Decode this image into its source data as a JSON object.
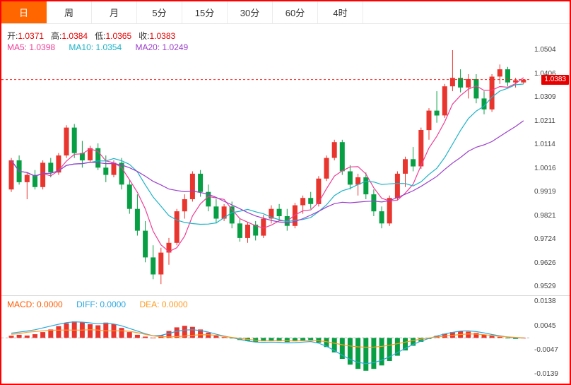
{
  "tabs": [
    {
      "label": "日",
      "active": true
    },
    {
      "label": "周",
      "active": false
    },
    {
      "label": "月",
      "active": false
    },
    {
      "label": "5分",
      "active": false
    },
    {
      "label": "15分",
      "active": false
    },
    {
      "label": "30分",
      "active": false
    },
    {
      "label": "60分",
      "active": false
    },
    {
      "label": "4时",
      "active": false
    }
  ],
  "ohlc": {
    "open_label": "开:",
    "open": "1.0371",
    "high_label": "高:",
    "high": "1.0384",
    "low_label": "低:",
    "low": "1.0365",
    "close_label": "收:",
    "close": "1.0383"
  },
  "ma": {
    "ma5_label": "MA5:",
    "ma5_value": "1.0398",
    "ma10_label": "MA10:",
    "ma10_value": "1.0354",
    "ma20_label": "MA20:",
    "ma20_value": "1.0249"
  },
  "current_price": "1.0383",
  "price_axis_labels": [
    "1.0504",
    "1.0406",
    "1.0309",
    "1.0211",
    "1.0114",
    "1.0016",
    "0.9919",
    "0.9821",
    "0.9724",
    "0.9626",
    "0.9529"
  ],
  "macd_panel": {
    "macd_label": "MACD:",
    "macd_value": "0.0000",
    "diff_label": "DIFF:",
    "diff_value": "0.0000",
    "dea_label": "DEA:",
    "dea_value": "0.0000",
    "axis_labels": [
      "0.0138",
      "0.0045",
      "-0.0047",
      "-0.0139"
    ]
  },
  "colors": {
    "up": "#e8352e",
    "down": "#089f44",
    "ma5": "#ee3d96",
    "ma10": "#1cb3c8",
    "ma20": "#9b3ecb",
    "macd_label": "#ff5a00",
    "diff": "#2ba8e0",
    "dea": "#ff9a1e",
    "accent": "#ff6600",
    "price_line": "#ff2222",
    "value_red": "#e60000",
    "axis_text": "#444444"
  },
  "chart_data": [
    {
      "type": "candlestick",
      "title": "日K线 (Daily candlestick, main panel)",
      "price_range": [
        0.9529,
        1.0504
      ],
      "axis_ticks": [
        1.0504,
        1.0406,
        1.0309,
        1.0211,
        1.0114,
        1.0016,
        0.9919,
        0.9821,
        0.9724,
        0.9626,
        0.9529
      ],
      "current_price": 1.0383,
      "overlays": [
        {
          "name": "MA5",
          "period": 5,
          "color_key": "ma5"
        },
        {
          "name": "MA10",
          "period": 10,
          "color_key": "ma10"
        },
        {
          "name": "MA20",
          "period": 20,
          "color_key": "ma20"
        }
      ],
      "candles": [
        [
          0.993,
          1.006,
          0.992,
          1.005
        ],
        [
          1.005,
          1.007,
          0.995,
          0.996
        ],
        [
          0.996,
          1.0,
          0.989,
          0.999
        ],
        [
          0.999,
          1.001,
          0.993,
          0.994
        ],
        [
          0.994,
          1.005,
          0.993,
          1.004
        ],
        [
          1.004,
          1.006,
          0.998,
          1.0
        ],
        [
          1.0,
          1.008,
          0.999,
          1.007
        ],
        [
          1.007,
          1.0195,
          1.006,
          1.0185
        ],
        [
          1.0185,
          1.02,
          1.006,
          1.008
        ],
        [
          1.008,
          1.013,
          1.002,
          1.005
        ],
        [
          1.005,
          1.011,
          1.004,
          1.01
        ],
        [
          1.01,
          1.012,
          1.001,
          1.002
        ],
        [
          1.002,
          1.007,
          0.996,
          0.999
        ],
        [
          0.999,
          1.005,
          0.998,
          1.004
        ],
        [
          1.004,
          1.006,
          0.993,
          0.995
        ],
        [
          0.995,
          0.997,
          0.983,
          0.985
        ],
        [
          0.985,
          0.991,
          0.974,
          0.976
        ],
        [
          0.976,
          0.98,
          0.963,
          0.965
        ],
        [
          0.965,
          0.97,
          0.956,
          0.958
        ],
        [
          0.958,
          0.969,
          0.954,
          0.967
        ],
        [
          0.967,
          0.973,
          0.962,
          0.971
        ],
        [
          0.971,
          0.985,
          0.97,
          0.984
        ],
        [
          0.984,
          0.991,
          0.981,
          0.989
        ],
        [
          0.989,
          1.0005,
          0.988,
          0.9995
        ],
        [
          0.9995,
          1.001,
          0.99,
          0.992
        ],
        [
          0.992,
          0.995,
          0.984,
          0.986
        ],
        [
          0.986,
          0.989,
          0.979,
          0.981
        ],
        [
          0.981,
          0.987,
          0.98,
          0.986
        ],
        [
          0.986,
          0.988,
          0.977,
          0.979
        ],
        [
          0.979,
          0.981,
          0.9715,
          0.973
        ],
        [
          0.973,
          0.9795,
          0.971,
          0.9785
        ],
        [
          0.9785,
          0.98,
          0.972,
          0.974
        ],
        [
          0.974,
          0.9825,
          0.973,
          0.981
        ],
        [
          0.981,
          0.9865,
          0.979,
          0.985
        ],
        [
          0.985,
          0.987,
          0.98,
          0.982
        ],
        [
          0.982,
          0.985,
          0.976,
          0.978
        ],
        [
          0.978,
          0.9875,
          0.977,
          0.9865
        ],
        [
          0.9865,
          0.9905,
          0.983,
          0.9895
        ],
        [
          0.9895,
          0.992,
          0.985,
          0.987
        ],
        [
          0.987,
          0.9985,
          0.986,
          0.9975
        ],
        [
          0.9975,
          1.007,
          0.9965,
          1.006
        ],
        [
          1.006,
          1.0135,
          1.005,
          1.0125
        ],
        [
          1.0125,
          1.0135,
          0.999,
          1.0005
        ],
        [
          1.0005,
          1.003,
          0.993,
          0.995
        ],
        [
          0.995,
          0.9995,
          0.9905,
          0.998
        ],
        [
          0.998,
          1.0,
          0.989,
          0.991
        ],
        [
          0.991,
          0.993,
          0.982,
          0.984
        ],
        [
          0.984,
          0.986,
          0.977,
          0.979
        ],
        [
          0.979,
          0.9905,
          0.978,
          0.9895
        ],
        [
          0.9895,
          1.0005,
          0.9885,
          0.9995
        ],
        [
          0.9995,
          1.0065,
          0.994,
          1.0055
        ],
        [
          1.0055,
          1.0105,
          1.0005,
          1.0025
        ],
        [
          1.0025,
          1.0185,
          1.0015,
          1.0175
        ],
        [
          1.0175,
          1.0265,
          1.0135,
          1.0255
        ],
        [
          1.0255,
          1.0335,
          1.0205,
          1.0235
        ],
        [
          1.0235,
          1.0365,
          1.0225,
          1.0355
        ],
        [
          1.0355,
          1.0504,
          1.0335,
          1.039
        ],
        [
          1.039,
          1.0425,
          1.033,
          1.035
        ],
        [
          1.035,
          1.0405,
          1.0305,
          1.0385
        ],
        [
          1.0385,
          1.0405,
          1.0285,
          1.0305
        ],
        [
          1.0305,
          1.0335,
          1.024,
          1.026
        ],
        [
          1.026,
          1.0405,
          1.025,
          1.0395
        ],
        [
          1.0395,
          1.0445,
          1.0365,
          1.0425
        ],
        [
          1.0425,
          1.0435,
          1.0355,
          1.0371
        ],
        [
          1.0371,
          1.039,
          1.035,
          1.038
        ],
        [
          1.0371,
          1.0384,
          1.0365,
          1.0383
        ]
      ]
    },
    {
      "type": "bar",
      "title": "MACD (sub panel)",
      "range": [
        -0.0139,
        0.0138
      ],
      "axis_ticks": [
        0.0138,
        0.0045,
        -0.0047,
        -0.0139
      ],
      "dea_rule": "dea[i] = diff[i] - histogram[i]/2",
      "histogram": [
        0.0008,
        0.0012,
        0.0009,
        0.0014,
        0.0022,
        0.0032,
        0.0045,
        0.0056,
        0.0063,
        0.006,
        0.0052,
        0.0048,
        0.0058,
        0.0052,
        0.0038,
        0.0022,
        0.0012,
        0.0005,
        0.0001,
        0.001,
        0.0026,
        0.004,
        0.0046,
        0.0042,
        0.0032,
        0.002,
        0.0008,
        0.0003,
        -0.0002,
        -0.0008,
        -0.0012,
        -0.0015,
        -0.0013,
        -0.001,
        -0.0013,
        -0.0016,
        -0.0013,
        -0.001,
        -0.0008,
        -0.0018,
        -0.0035,
        -0.0055,
        -0.008,
        -0.0102,
        -0.0118,
        -0.0125,
        -0.0118,
        -0.0105,
        -0.0088,
        -0.0068,
        -0.0048,
        -0.003,
        -0.0015,
        -0.0004,
        0.0008,
        0.0016,
        0.0022,
        0.0026,
        0.0024,
        0.0019,
        0.0013,
        0.0008,
        0.0004,
        -0.0002,
        -0.0004,
        0.0
      ],
      "diff": [
        0.0018,
        0.0022,
        0.0026,
        0.0031,
        0.0038,
        0.0045,
        0.0052,
        0.0058,
        0.0061,
        0.006,
        0.0057,
        0.0054,
        0.0056,
        0.0053,
        0.0046,
        0.0036,
        0.0026,
        0.0016,
        0.0008,
        0.001,
        0.0017,
        0.0025,
        0.003,
        0.0031,
        0.0028,
        0.0022,
        0.0014,
        0.0007,
        0.0001,
        -0.0006,
        -0.0012,
        -0.0016,
        -0.0017,
        -0.0016,
        -0.0017,
        -0.0019,
        -0.0018,
        -0.0016,
        -0.0014,
        -0.002,
        -0.0032,
        -0.0048,
        -0.0066,
        -0.0082,
        -0.0093,
        -0.0098,
        -0.0094,
        -0.0085,
        -0.0072,
        -0.0056,
        -0.004,
        -0.0025,
        -0.0012,
        -0.0002,
        0.0007,
        0.0015,
        0.0021,
        0.0026,
        0.0027,
        0.0024,
        0.0019,
        0.0013,
        0.0008,
        0.0003,
        0.0,
        0.0
      ]
    }
  ]
}
